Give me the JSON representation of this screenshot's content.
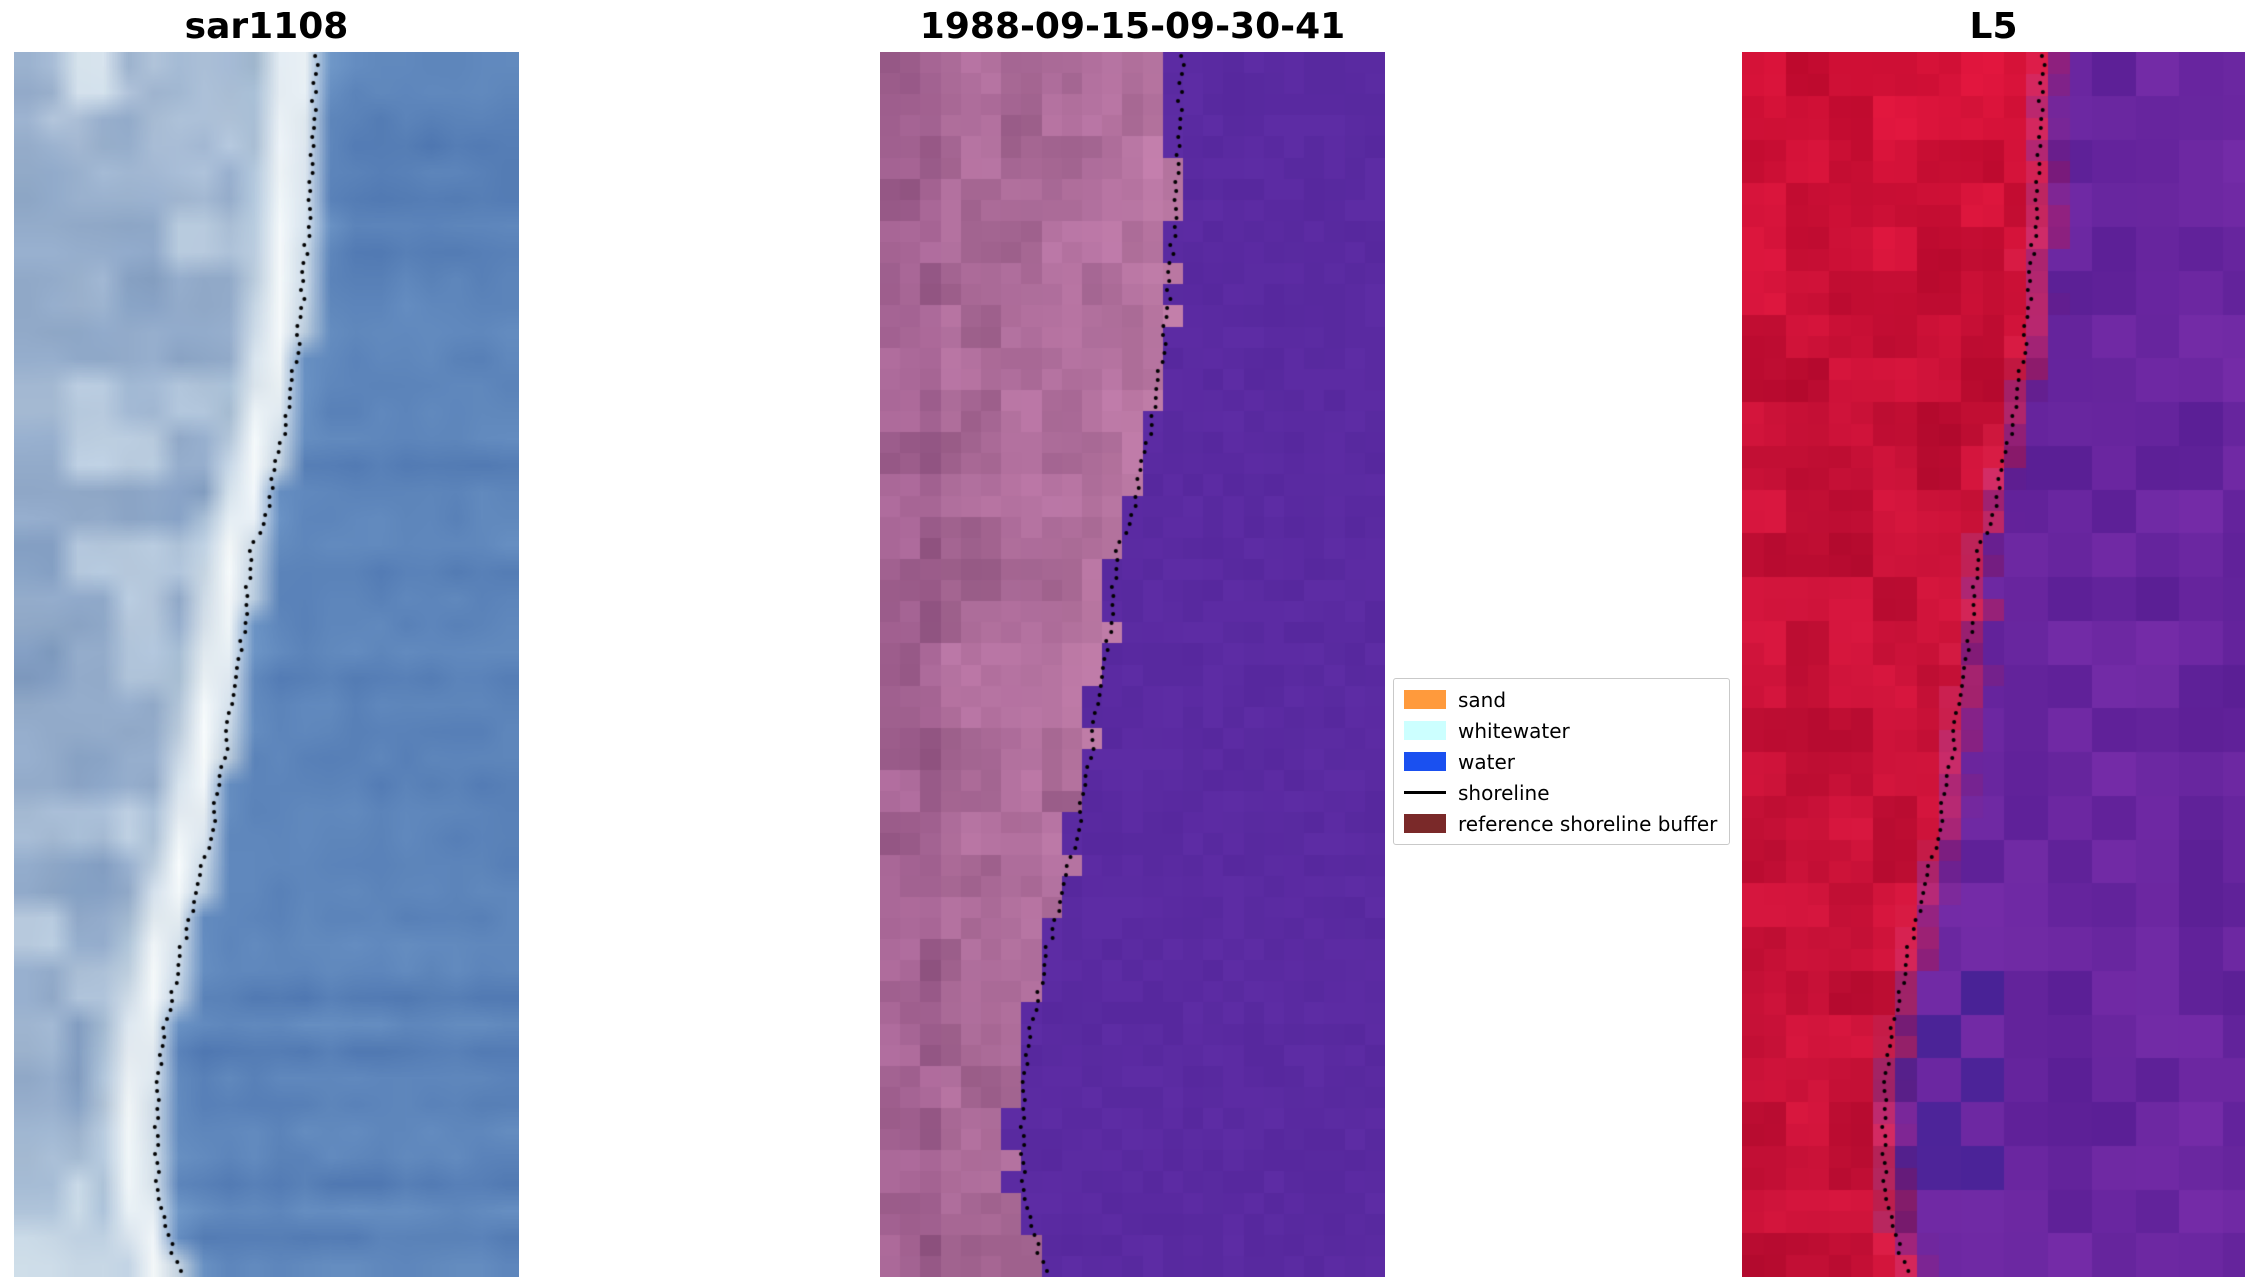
{
  "figure": {
    "background": "#ffffff",
    "panels": [
      {
        "title": "sar1108",
        "kind": "sar",
        "palette": {
          "open_water": "#5c84ba",
          "whitewater_band": "#f4f8fa",
          "offshore_clutter": "#94aecb",
          "bright_patch": "#e4ecf2"
        }
      },
      {
        "title": "1988-09-15-09-30-41",
        "kind": "class",
        "palette": {
          "land_mauve": "#aa6a97",
          "land_bright_pink": "#d08ab4",
          "water_purple": "#5a2aa1"
        }
      },
      {
        "title": "L5",
        "kind": "l5",
        "palette": {
          "left_red": "#c51036",
          "right_purple": "#67269e",
          "dark_patch": "#3a2496"
        }
      }
    ],
    "legend": {
      "items": [
        {
          "label": "sand",
          "swatch": "#ff9a3c",
          "kind": "patch"
        },
        {
          "label": "whitewater",
          "swatch": "#ccffff",
          "kind": "patch"
        },
        {
          "label": "water",
          "swatch": "#1a50f0",
          "kind": "patch"
        },
        {
          "label": "shoreline",
          "swatch": "#000000",
          "kind": "line"
        },
        {
          "label": "reference shoreline buffer",
          "swatch": "#7a2929",
          "kind": "patch"
        }
      ]
    }
  },
  "chart_data": {
    "type": "heatmap",
    "subtype": "satellite-image-panels-with-detected-shoreline",
    "panel_titles": [
      "sar1108",
      "1988-09-15-09-30-41",
      "L5"
    ],
    "legend_entries": [
      "sand",
      "whitewater",
      "water",
      "shoreline",
      "reference shoreline buffer"
    ],
    "shoreline_style": "black dotted line",
    "shoreline_path_normalized": [
      [
        0.0,
        0.6
      ],
      [
        0.05,
        0.593
      ],
      [
        0.12,
        0.585
      ],
      [
        0.2,
        0.572
      ],
      [
        0.27,
        0.552
      ],
      [
        0.33,
        0.524
      ],
      [
        0.38,
        0.497
      ],
      [
        0.41,
        0.468
      ],
      [
        0.46,
        0.458
      ],
      [
        0.52,
        0.436
      ],
      [
        0.58,
        0.415
      ],
      [
        0.64,
        0.388
      ],
      [
        0.69,
        0.357
      ],
      [
        0.74,
        0.327
      ],
      [
        0.8,
        0.299
      ],
      [
        0.86,
        0.281
      ],
      [
        0.92,
        0.284
      ],
      [
        0.96,
        0.3
      ],
      [
        1.0,
        0.332
      ]
    ]
  }
}
